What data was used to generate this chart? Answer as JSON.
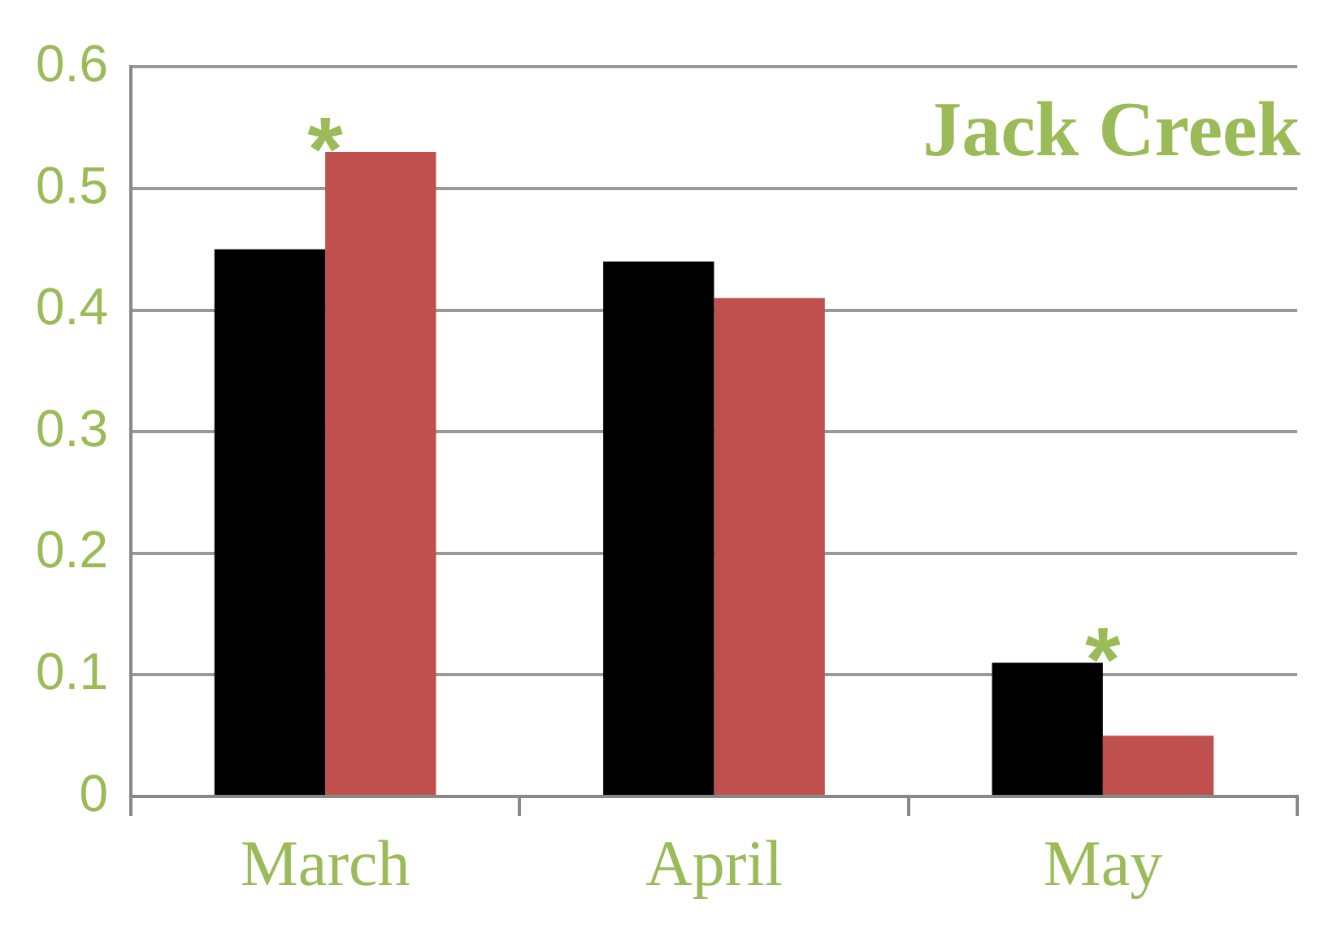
{
  "chart_data": {
    "type": "bar",
    "title": "Jack Creek",
    "categories": [
      "March",
      "April",
      "May"
    ],
    "series": [
      {
        "color": "#000000",
        "values": [
          0.45,
          0.44,
          0.11
        ]
      },
      {
        "color": "#c0504d",
        "values": [
          0.53,
          0.41,
          0.05
        ]
      }
    ],
    "ylim": [
      0,
      0.6
    ],
    "yticks": [
      0,
      0.1,
      0.2,
      0.3,
      0.4,
      0.5,
      0.6
    ],
    "grid": "y",
    "legend": false,
    "annotations": [
      {
        "text": "*",
        "x": "March",
        "y": 0.53
      },
      {
        "text": "*",
        "x": "May",
        "y": 0.11
      }
    ]
  }
}
